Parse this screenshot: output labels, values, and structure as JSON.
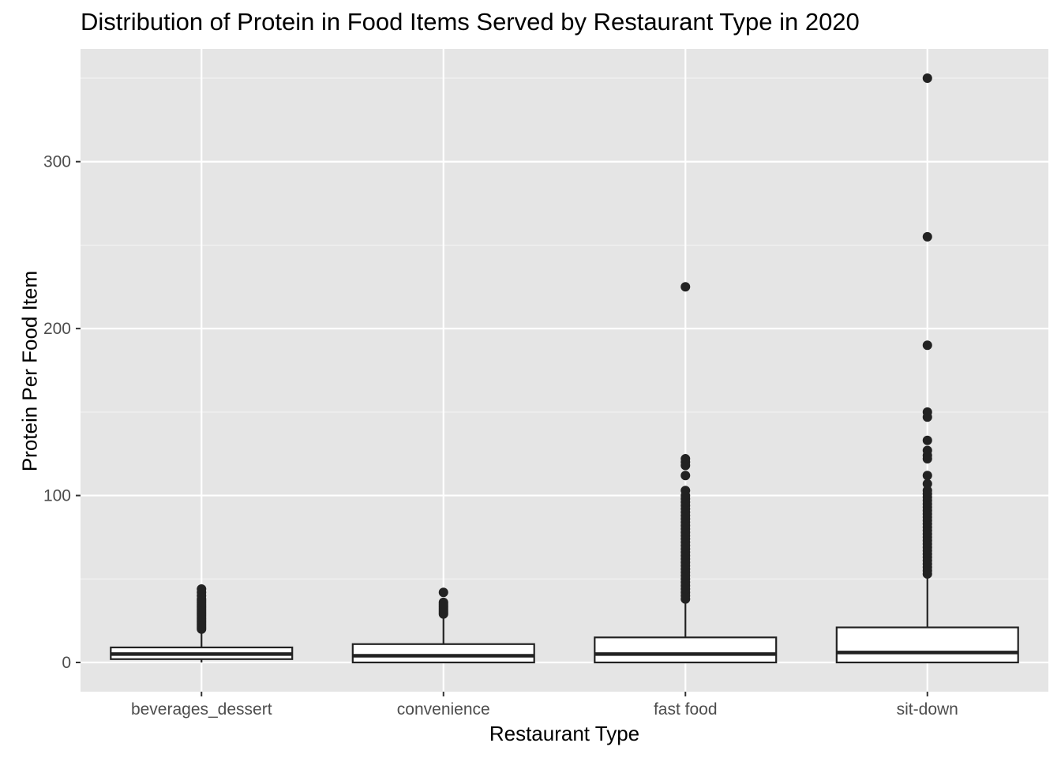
{
  "chart_data": {
    "type": "box",
    "title": "Distribution of Protein in Food Items Served by Restaurant Type in 2020",
    "xlabel": "Restaurant Type",
    "ylabel": "Protein Per Food Item",
    "ylim": [
      -17.5,
      367.5
    ],
    "yticks": [
      0,
      100,
      200,
      300
    ],
    "grid": true,
    "categories": [
      "beverages_dessert",
      "convenience",
      "fast food",
      "sit-down"
    ],
    "boxes": [
      {
        "category": "beverages_dessert",
        "whisker_low": 0,
        "q1": 2,
        "median": 5,
        "q3": 9,
        "whisker_high": 19,
        "outliers": [
          20,
          21,
          22,
          23,
          24,
          25,
          26,
          27,
          28,
          29,
          30,
          31,
          32,
          33,
          34,
          35,
          36,
          37,
          38,
          40,
          42,
          44
        ]
      },
      {
        "category": "convenience",
        "whisker_low": 0,
        "q1": 0,
        "median": 4,
        "q3": 11,
        "whisker_high": 27,
        "outliers": [
          29,
          30,
          31,
          32,
          33,
          34,
          35,
          36,
          42
        ]
      },
      {
        "category": "fast food",
        "whisker_low": 0,
        "q1": 0,
        "median": 5,
        "q3": 15,
        "whisker_high": 37,
        "outliers": [
          38,
          40,
          42,
          44,
          46,
          48,
          50,
          52,
          54,
          56,
          58,
          60,
          62,
          64,
          66,
          68,
          70,
          72,
          74,
          76,
          78,
          80,
          82,
          84,
          86,
          88,
          90,
          92,
          94,
          96,
          98,
          100,
          103,
          112,
          118,
          120,
          122,
          225
        ]
      },
      {
        "category": "sit-down",
        "whisker_low": 0,
        "q1": 0,
        "median": 6,
        "q3": 21,
        "whisker_high": 52,
        "outliers": [
          53,
          55,
          57,
          59,
          61,
          63,
          65,
          67,
          69,
          71,
          73,
          75,
          77,
          79,
          81,
          83,
          85,
          87,
          89,
          91,
          93,
          95,
          97,
          99,
          101,
          103,
          107,
          112,
          122,
          124,
          127,
          133,
          147,
          150,
          190,
          255,
          350
        ]
      }
    ]
  }
}
